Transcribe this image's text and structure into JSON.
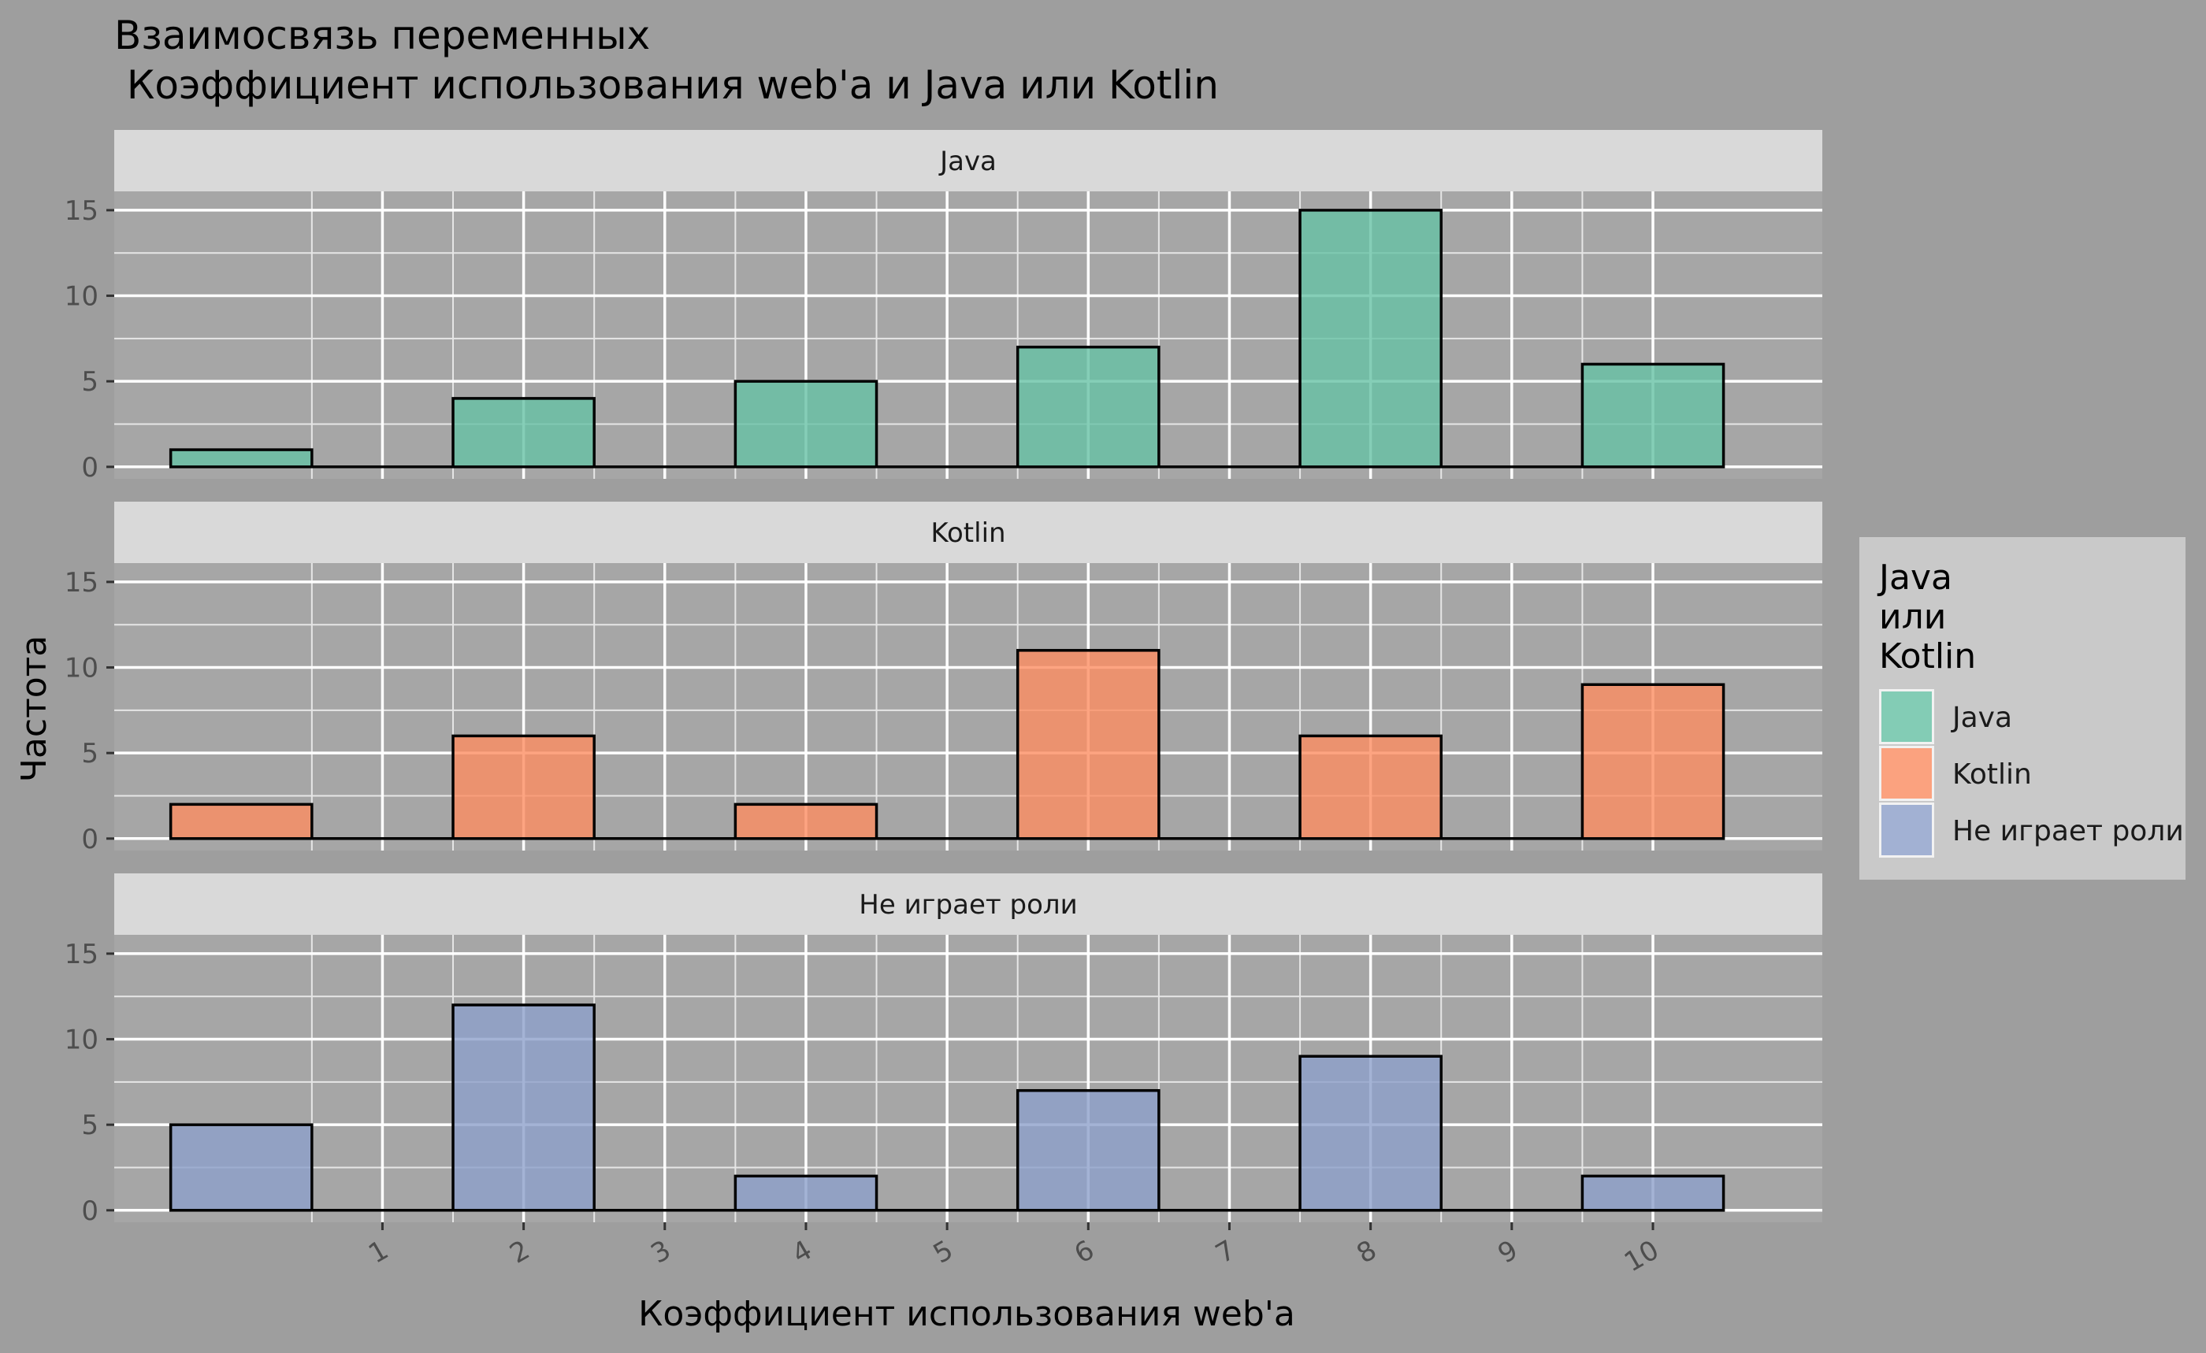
{
  "chart_data": {
    "type": "bar",
    "title_lines": [
      "Взаимосвязь переменных",
      " Коэффициент использования web'a и Java или Kotlin"
    ],
    "xlabel": "Коэффициент использования web'a",
    "ylabel": "Частота",
    "x_ticks": [
      "1",
      "2",
      "3",
      "4",
      "5",
      "6",
      "7",
      "8",
      "9",
      "10"
    ],
    "x_range": [
      -0.9,
      11.2
    ],
    "bins": [
      0,
      2,
      4,
      6,
      8,
      10
    ],
    "bin_width": 1,
    "y_ticks": [
      0,
      5,
      10,
      15
    ],
    "ylim": [
      -0.7,
      16.1
    ],
    "legend": {
      "title_lines": [
        "Java",
        "или",
        "Kotlin"
      ],
      "placement": "right"
    },
    "series": [
      {
        "name": "Java",
        "color": "#66c2a5",
        "values": [
          1,
          4,
          5,
          7,
          15,
          6
        ]
      },
      {
        "name": "Kotlin",
        "color": "#fc8d62",
        "values": [
          2,
          6,
          2,
          11,
          6,
          9
        ]
      },
      {
        "name": "Не играет роли",
        "color": "#8da0cb",
        "values": [
          5,
          12,
          2,
          7,
          9,
          2
        ]
      }
    ]
  }
}
